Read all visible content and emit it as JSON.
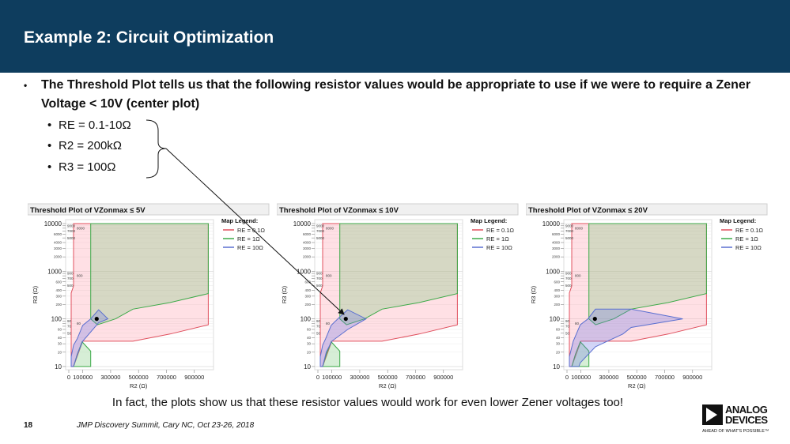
{
  "header": {
    "title": "Example 2: Circuit Optimization"
  },
  "bullets": {
    "main": "The Threshold Plot tells us that the following resistor values would be appropriate to use if we were to require a Zener Voltage < 10V (center plot)",
    "marker": "•",
    "sub": [
      "RE = 0.1-10Ω",
      "R2 = 200kΩ",
      "R3 = 100Ω"
    ]
  },
  "note": "In fact, the plots show us that these resistor values would work for even lower Zener voltages too!",
  "footer": {
    "page": "18",
    "conference": "JMP Discovery Summit, Cary NC, Oct 23-26, 2018"
  },
  "logo": {
    "line1": "ANALOG",
    "line2": "DEVICES",
    "tagline": "AHEAD OF WHAT'S POSSIBLE™"
  },
  "colors": {
    "header_bg": "#0e3d5e",
    "re01": "#e0505e",
    "re1": "#3caa48",
    "re10": "#5a6fd0"
  },
  "chart_data": [
    {
      "type": "area",
      "title": "Threshold Plot of VZonmax ≤ 5V",
      "xlabel": "R2 (Ω)",
      "ylabel": "R3 (Ω)",
      "xlim": [
        0,
        1000000
      ],
      "ylim": [
        10,
        10000
      ],
      "yscale": "log",
      "grid": true,
      "xticks": [
        "0",
        "100000",
        "300000",
        "500000",
        "700000",
        "900000"
      ],
      "yticks_major": [
        "10",
        "100",
        "1000",
        "10000"
      ],
      "legend": {
        "title": "Map Legend:",
        "placement": "right"
      },
      "series": [
        {
          "name": "RE = 0.1Ω",
          "color": "#e0505e",
          "polygons": [
            [
              [
                34000,
                10000
              ],
              [
                1000000,
                10000
              ],
              [
                1000000,
                75
              ],
              [
                725000,
                48
              ],
              [
                460000,
                34
              ],
              [
                100000,
                34
              ],
              [
                34000,
                10
              ],
              [
                17000,
                10
              ],
              [
                17000,
                350
              ],
              [
                34000,
                490
              ]
            ]
          ]
        },
        {
          "name": "RE = 1Ω",
          "color": "#3caa48",
          "polygons": [
            [
              [
                157000,
                10000
              ],
              [
                1000000,
                10000
              ],
              [
                1000000,
                340
              ],
              [
                725000,
                220
              ],
              [
                460000,
                160
              ],
              [
                335000,
                100
              ],
              [
                205000,
                75
              ],
              [
                157000,
                100
              ]
            ],
            [
              [
                34000,
                10
              ],
              [
                157000,
                10
              ],
              [
                157000,
                21
              ],
              [
                95000,
                33
              ],
              [
                60000,
                18
              ]
            ]
          ]
        },
        {
          "name": "RE = 10Ω",
          "color": "#5a6fd0",
          "polygons": [
            [
              [
                17000,
                10
              ],
              [
                34000,
                10
              ],
              [
                62000,
                18
              ],
              [
                100000,
                34
              ],
              [
                214000,
                83
              ],
              [
                280000,
                100
              ],
              [
                214000,
                155
              ],
              [
                157000,
                100
              ],
              [
                100000,
                73
              ],
              [
                60000,
                38
              ],
              [
                34000,
                28
              ],
              [
                17000,
                16
              ]
            ]
          ]
        }
      ],
      "point": [
        200000,
        100
      ]
    },
    {
      "type": "area",
      "title": "Threshold Plot of VZonmax ≤ 10V",
      "xlabel": "R2 (Ω)",
      "ylabel": "R3 (Ω)",
      "xlim": [
        0,
        1000000
      ],
      "ylim": [
        10,
        10000
      ],
      "yscale": "log",
      "grid": true,
      "xticks": [
        "0",
        "100000",
        "300000",
        "500000",
        "700000",
        "900000"
      ],
      "yticks_major": [
        "10",
        "100",
        "1000",
        "10000"
      ],
      "legend": {
        "title": "Map Legend:",
        "placement": "right"
      },
      "series": [
        {
          "name": "RE = 0.1Ω",
          "color": "#e0505e",
          "polygons": [
            [
              [
                34000,
                10000
              ],
              [
                1000000,
                10000
              ],
              [
                1000000,
                75
              ],
              [
                725000,
                48
              ],
              [
                460000,
                34
              ],
              [
                100000,
                34
              ],
              [
                34000,
                10
              ],
              [
                17000,
                10
              ],
              [
                17000,
                350
              ],
              [
                34000,
                490
              ]
            ]
          ]
        },
        {
          "name": "RE = 1Ω",
          "color": "#3caa48",
          "polygons": [
            [
              [
                157000,
                10000
              ],
              [
                1000000,
                10000
              ],
              [
                1000000,
                340
              ],
              [
                725000,
                220
              ],
              [
                460000,
                160
              ],
              [
                335000,
                100
              ],
              [
                205000,
                75
              ],
              [
                157000,
                100
              ]
            ],
            [
              [
                34000,
                10
              ],
              [
                157000,
                10
              ],
              [
                157000,
                21
              ],
              [
                95000,
                33
              ],
              [
                60000,
                18
              ]
            ]
          ]
        },
        {
          "name": "RE = 10Ω",
          "color": "#5a6fd0",
          "polygons": [
            [
              [
                17000,
                10
              ],
              [
                34000,
                10
              ],
              [
                60000,
                20
              ],
              [
                100000,
                34
              ],
              [
                214000,
                60
              ],
              [
                345000,
                100
              ],
              [
                214000,
                155
              ],
              [
                157000,
                110
              ],
              [
                95000,
                73
              ],
              [
                55000,
                38
              ],
              [
                34000,
                28
              ],
              [
                17000,
                16
              ]
            ]
          ]
        }
      ],
      "point": [
        200000,
        100
      ]
    },
    {
      "type": "area",
      "title": "Threshold Plot of VZonmax ≤ 20V",
      "xlabel": "R2 (Ω)",
      "ylabel": "R3 (Ω)",
      "xlim": [
        0,
        1000000
      ],
      "ylim": [
        10,
        10000
      ],
      "yscale": "log",
      "grid": true,
      "xticks": [
        "0",
        "100000",
        "300000",
        "500000",
        "700000",
        "900000"
      ],
      "yticks_major": [
        "10",
        "100",
        "1000",
        "10000"
      ],
      "legend": {
        "title": "Map Legend:",
        "placement": "right"
      },
      "series": [
        {
          "name": "RE = 0.1Ω",
          "color": "#e0505e",
          "polygons": [
            [
              [
                34000,
                10000
              ],
              [
                1000000,
                10000
              ],
              [
                1000000,
                75
              ],
              [
                725000,
                48
              ],
              [
                460000,
                34
              ],
              [
                100000,
                34
              ],
              [
                34000,
                10
              ],
              [
                17000,
                10
              ],
              [
                17000,
                350
              ],
              [
                34000,
                490
              ]
            ]
          ]
        },
        {
          "name": "RE = 1Ω",
          "color": "#3caa48",
          "polygons": [
            [
              [
                157000,
                10000
              ],
              [
                1000000,
                10000
              ],
              [
                1000000,
                340
              ],
              [
                725000,
                220
              ],
              [
                460000,
                160
              ],
              [
                335000,
                100
              ],
              [
                205000,
                75
              ],
              [
                157000,
                100
              ]
            ],
            [
              [
                34000,
                10
              ],
              [
                157000,
                10
              ],
              [
                157000,
                21
              ],
              [
                95000,
                33
              ],
              [
                60000,
                18
              ]
            ]
          ]
        },
        {
          "name": "RE = 10Ω",
          "color": "#5a6fd0",
          "polygons": [
            [
              [
                17000,
                10
              ],
              [
                85000,
                10
              ],
              [
                95000,
                12
              ],
              [
                204000,
                26
              ],
              [
                400000,
                48
              ],
              [
                460000,
                66
              ],
              [
                830000,
                100
              ],
              [
                460000,
                160
              ],
              [
                204000,
                160
              ],
              [
                150000,
                100
              ],
              [
                95000,
                75
              ],
              [
                45000,
                34
              ],
              [
                17000,
                16
              ]
            ]
          ]
        }
      ],
      "point": [
        200000,
        100
      ]
    }
  ]
}
